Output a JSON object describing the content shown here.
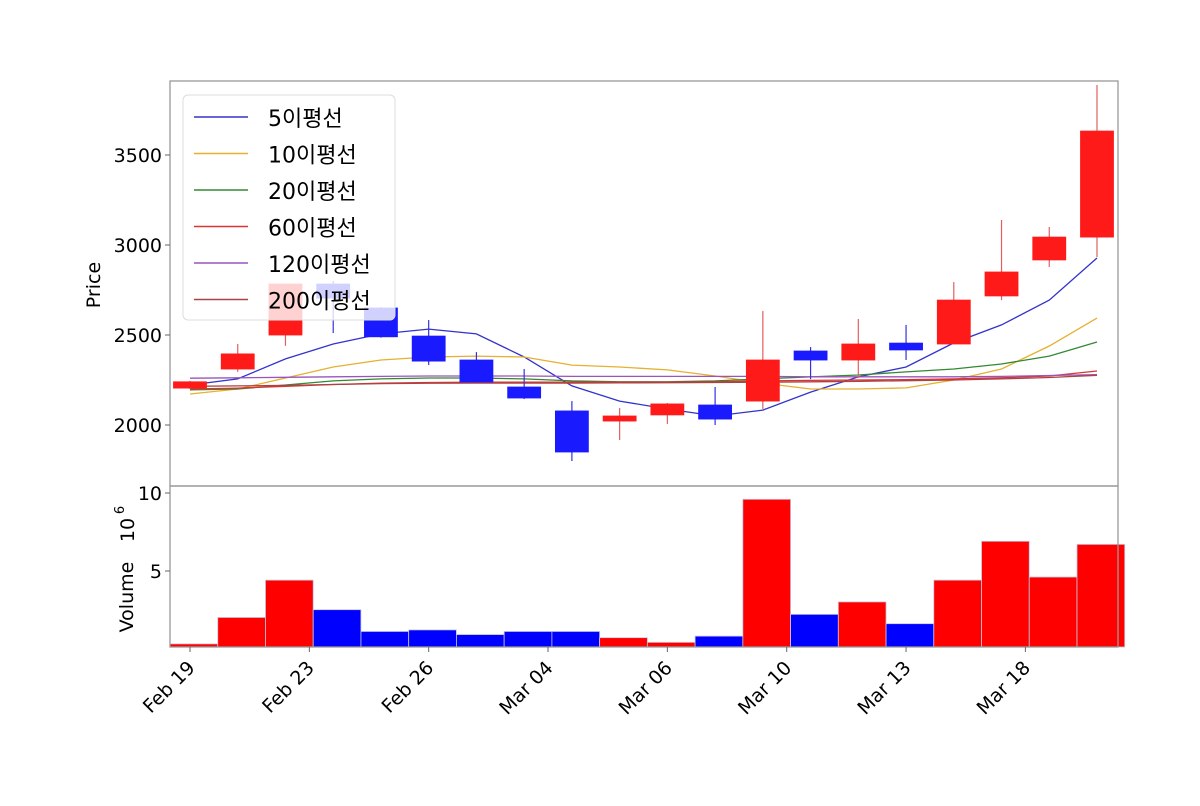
{
  "chart_data": {
    "type": "candlestick",
    "title": "",
    "xlabel": "",
    "ylabel": "Price",
    "volume_ylabel": "Volume",
    "volume_exponent_label": "10^6",
    "ylim": [
      1680,
      3930
    ],
    "volume_ylim": [
      0,
      10.4
    ],
    "grid": false,
    "legend_position": "upper left",
    "colors": {
      "up": "#ff1a1a",
      "down": "#1a1aff",
      "volume_up": "#ff0000",
      "volume_down": "#0000ff",
      "axis": "#999999"
    },
    "price_ticks": [
      2000,
      2500,
      3000,
      3500
    ],
    "volume_ticks": [
      5,
      10
    ],
    "x_tick_labels": [
      {
        "label": "Feb 19",
        "pos": 0
      },
      {
        "label": "Feb 23",
        "pos": 2.5
      },
      {
        "label": "Feb 26",
        "pos": 5
      },
      {
        "label": "Mar 04",
        "pos": 7.5
      },
      {
        "label": "Mar 06",
        "pos": 10
      },
      {
        "label": "Mar 10",
        "pos": 12.5
      },
      {
        "label": "Mar 13",
        "pos": 15
      },
      {
        "label": "Mar 18",
        "pos": 17.5
      }
    ],
    "candles": [
      {
        "open": 2205,
        "high": 2245,
        "low": 2200,
        "close": 2240,
        "volume": 0.2
      },
      {
        "open": 2311,
        "high": 2450,
        "low": 2295,
        "close": 2395,
        "volume": 1.9
      },
      {
        "open": 2500,
        "high": 2783,
        "low": 2440,
        "close": 2783,
        "volume": 4.3
      },
      {
        "open": 2783,
        "high": 2800,
        "low": 2511,
        "close": 2705,
        "volume": 2.4
      },
      {
        "open": 2650,
        "high": 2655,
        "low": 2485,
        "close": 2490,
        "volume": 1.0
      },
      {
        "open": 2494,
        "high": 2583,
        "low": 2333,
        "close": 2355,
        "volume": 1.1
      },
      {
        "open": 2361,
        "high": 2405,
        "low": 2239,
        "close": 2239,
        "volume": 0.8
      },
      {
        "open": 2211,
        "high": 2311,
        "low": 2144,
        "close": 2150,
        "volume": 1.0
      },
      {
        "open": 2078,
        "high": 2133,
        "low": 1800,
        "close": 1850,
        "volume": 1.0
      },
      {
        "open": 2022,
        "high": 2094,
        "low": 1917,
        "close": 2050,
        "volume": 0.6
      },
      {
        "open": 2056,
        "high": 2122,
        "low": 2006,
        "close": 2117,
        "volume": 0.3
      },
      {
        "open": 2111,
        "high": 2211,
        "low": 2000,
        "close": 2033,
        "volume": 0.7
      },
      {
        "open": 2133,
        "high": 2633,
        "low": 2089,
        "close": 2361,
        "volume": 9.5
      },
      {
        "open": 2411,
        "high": 2433,
        "low": 2255,
        "close": 2361,
        "volume": 2.1
      },
      {
        "open": 2361,
        "high": 2589,
        "low": 2261,
        "close": 2450,
        "volume": 2.9
      },
      {
        "open": 2455,
        "high": 2556,
        "low": 2361,
        "close": 2417,
        "volume": 1.5
      },
      {
        "open": 2450,
        "high": 2794,
        "low": 2450,
        "close": 2694,
        "volume": 4.3
      },
      {
        "open": 2717,
        "high": 3139,
        "low": 2694,
        "close": 2850,
        "volume": 6.8
      },
      {
        "open": 2917,
        "high": 3100,
        "low": 2878,
        "close": 3044,
        "volume": 4.5
      },
      {
        "open": 3044,
        "high": 3889,
        "low": 2933,
        "close": 3633,
        "volume": 6.6
      }
    ],
    "series": [
      {
        "name": "5이평선",
        "color": "#3333cc",
        "values": [
          2222,
          2256,
          2367,
          2450,
          2506,
          2533,
          2506,
          2378,
          2217,
          2133,
          2089,
          2050,
          2083,
          2183,
          2267,
          2322,
          2456,
          2556,
          2694,
          2928
        ]
      },
      {
        "name": "10이평선",
        "color": "#e6b030",
        "values": [
          2172,
          2200,
          2261,
          2322,
          2361,
          2378,
          2383,
          2378,
          2333,
          2322,
          2306,
          2272,
          2233,
          2200,
          2200,
          2206,
          2250,
          2311,
          2439,
          2594
        ]
      },
      {
        "name": "20이평선",
        "color": "#338833",
        "values": [
          2195,
          2200,
          2222,
          2245,
          2256,
          2261,
          2261,
          2256,
          2245,
          2240,
          2240,
          2245,
          2256,
          2267,
          2278,
          2295,
          2311,
          2339,
          2383,
          2461
        ]
      },
      {
        "name": "60이평선",
        "color": "#dd3333",
        "values": [
          2200,
          2205,
          2215,
          2225,
          2232,
          2236,
          2238,
          2238,
          2238,
          2238,
          2238,
          2240,
          2245,
          2248,
          2250,
          2252,
          2256,
          2262,
          2272,
          2300
        ]
      },
      {
        "name": "120이평선",
        "color": "#9955bb",
        "values": [
          2260,
          2262,
          2265,
          2268,
          2270,
          2272,
          2272,
          2272,
          2270,
          2270,
          2270,
          2270,
          2270,
          2268,
          2268,
          2268,
          2268,
          2270,
          2275,
          2280
        ]
      },
      {
        "name": "200이평선",
        "color": "#aa4444",
        "values": [
          2215,
          2217,
          2220,
          2225,
          2230,
          2232,
          2233,
          2233,
          2233,
          2234,
          2235,
          2236,
          2238,
          2240,
          2243,
          2246,
          2250,
          2256,
          2264,
          2276
        ]
      }
    ]
  }
}
